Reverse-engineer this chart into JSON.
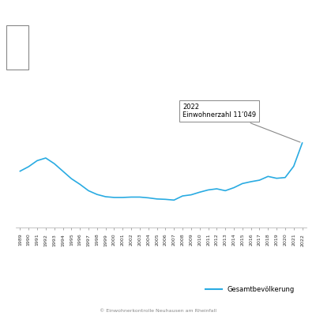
{
  "years": [
    1989,
    1990,
    1991,
    1992,
    1993,
    1994,
    1995,
    1996,
    1997,
    1998,
    1999,
    2000,
    2001,
    2002,
    2003,
    2004,
    2005,
    2006,
    2007,
    2008,
    2009,
    2010,
    2011,
    2012,
    2013,
    2014,
    2015,
    2016,
    2017,
    2018,
    2019,
    2020,
    2021,
    2022
  ],
  "population": [
    10300,
    10420,
    10580,
    10650,
    10500,
    10300,
    10100,
    9950,
    9780,
    9680,
    9620,
    9600,
    9600,
    9610,
    9610,
    9590,
    9560,
    9550,
    9530,
    9640,
    9670,
    9740,
    9800,
    9830,
    9780,
    9860,
    9970,
    10020,
    10060,
    10160,
    10110,
    10130,
    10430,
    11049
  ],
  "line_color": "#29ABE2",
  "line_width": 1.2,
  "annotation_text": "2022\nEinwohnerzahl 11’049",
  "annotation_year": 2022,
  "annotation_value": 11049,
  "legend_label": "Gesamtbevölkerung",
  "footer": "© Einwohnerkontrolle Neuhausen am Rheinfall",
  "ylim_min": 8800,
  "ylim_max": 12500,
  "background_color": "#ffffff",
  "grid_color": "#d0d0d0",
  "grid_linewidth": 0.5
}
